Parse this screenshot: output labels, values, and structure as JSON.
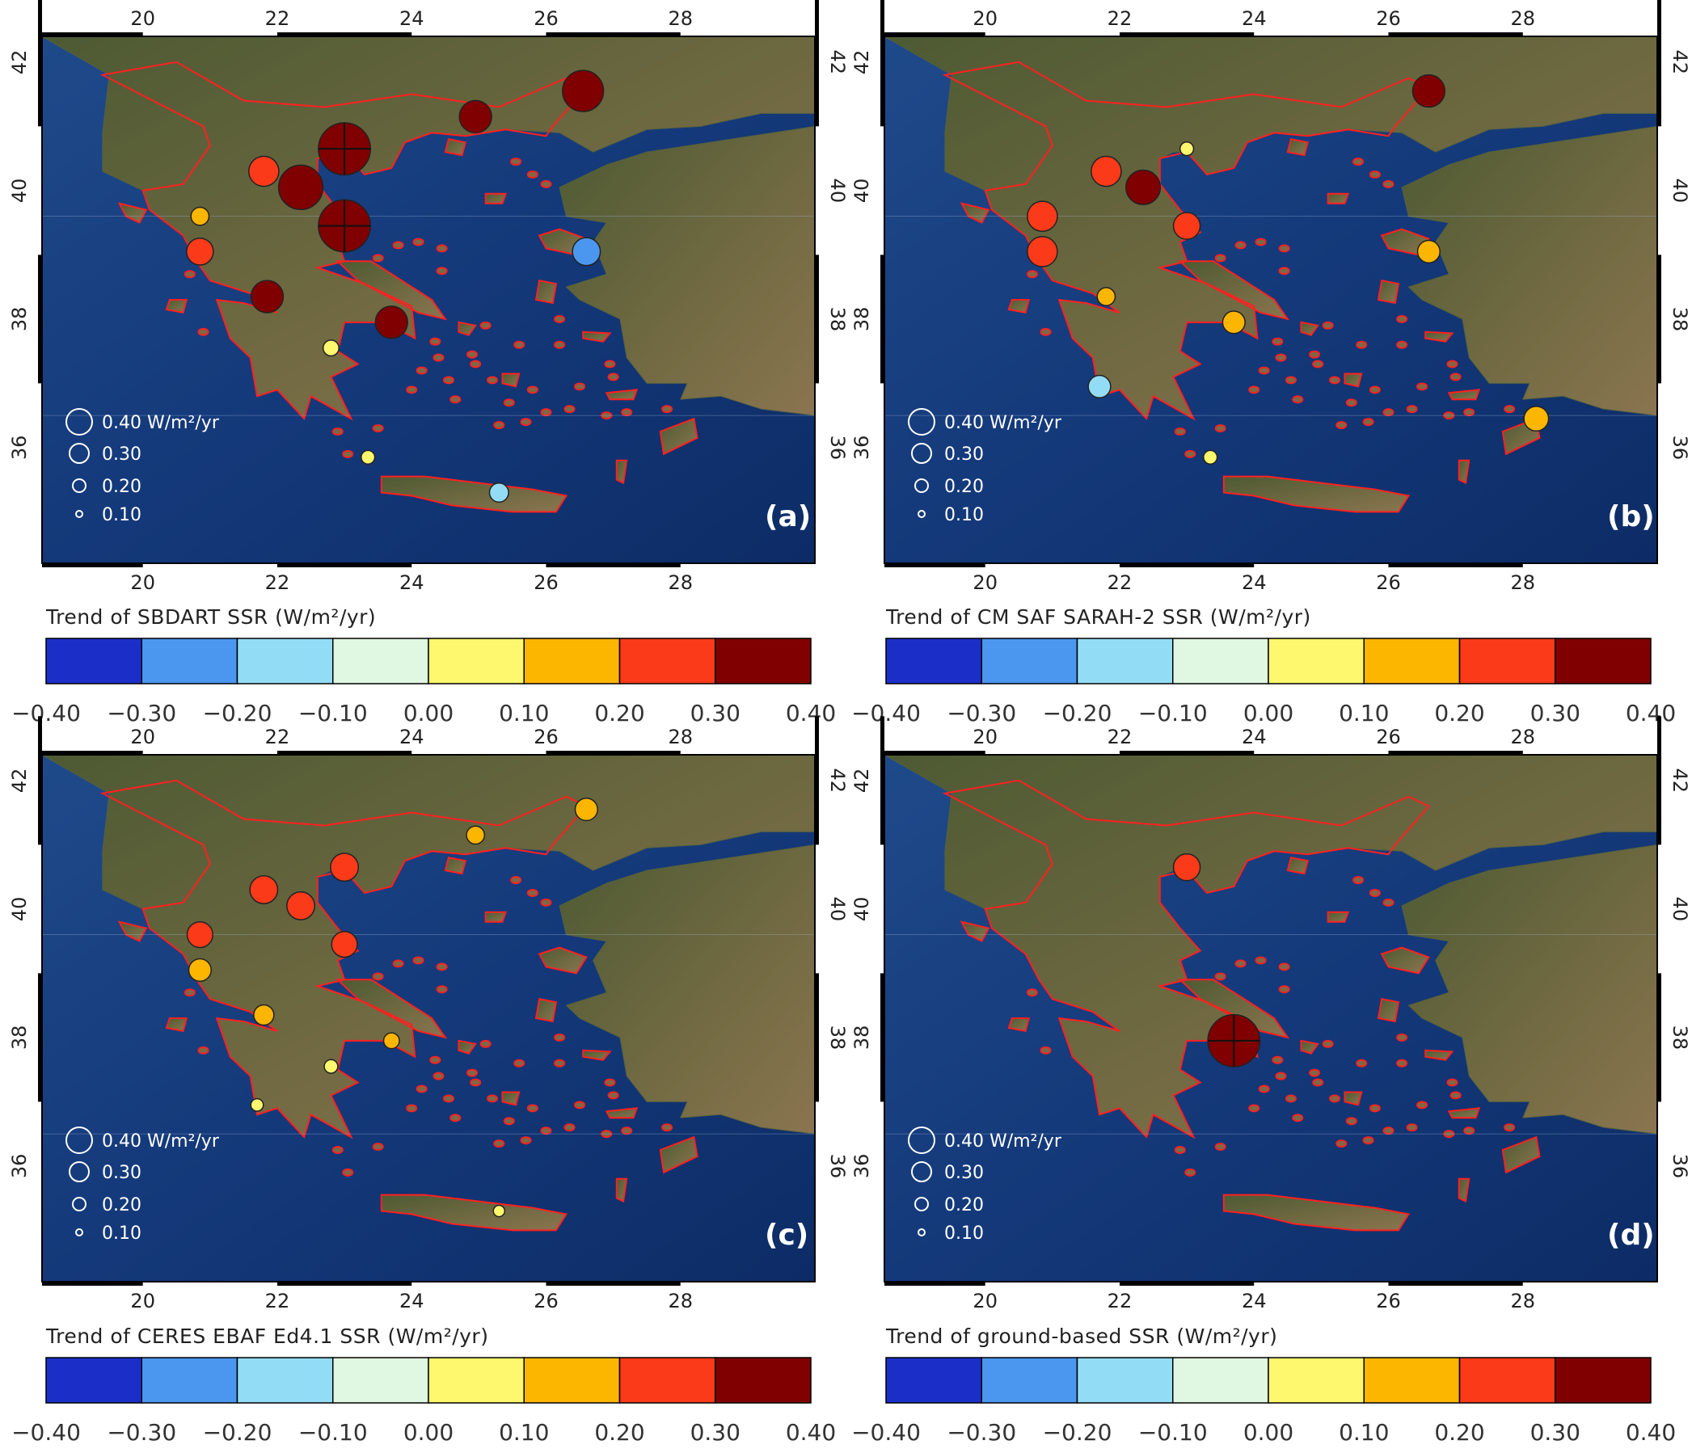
{
  "panels": [
    {
      "id": "a",
      "label": "(a)",
      "colorbar_title": "Trend of SBDART SSR (W/m²/yr)",
      "stations": [
        {
          "lon": 23.0,
          "lat": 40.65,
          "value": 0.4,
          "class": 7,
          "cross": true
        },
        {
          "lon": 23.0,
          "lat": 39.45,
          "value": 0.4,
          "class": 7,
          "cross": true
        },
        {
          "lon": 22.35,
          "lat": 40.05,
          "value": 0.33,
          "class": 7
        },
        {
          "lon": 26.55,
          "lat": 41.55,
          "value": 0.3,
          "class": 7
        },
        {
          "lon": 24.95,
          "lat": 41.15,
          "value": 0.22,
          "class": 7
        },
        {
          "lon": 21.85,
          "lat": 38.35,
          "value": 0.22,
          "class": 7
        },
        {
          "lon": 23.7,
          "lat": 37.95,
          "value": 0.22,
          "class": 7
        },
        {
          "lon": 21.8,
          "lat": 40.3,
          "value": 0.2,
          "class": 6
        },
        {
          "lon": 20.85,
          "lat": 39.05,
          "value": 0.17,
          "class": 6
        },
        {
          "lon": 20.85,
          "lat": 39.6,
          "value": 0.09,
          "class": 5
        },
        {
          "lon": 26.6,
          "lat": 39.05,
          "value": -0.18,
          "class": 1
        },
        {
          "lon": 25.3,
          "lat": 35.3,
          "value": -0.1,
          "class": 2
        },
        {
          "lon": 22.8,
          "lat": 37.55,
          "value": 0.07,
          "class": 4
        },
        {
          "lon": 23.35,
          "lat": 35.85,
          "value": 0.05,
          "class": 4
        }
      ]
    },
    {
      "id": "b",
      "label": "(b)",
      "colorbar_title": "Trend of CM SAF SARAH-2 SSR (W/m²/yr)",
      "stations": [
        {
          "lon": 26.6,
          "lat": 41.55,
          "value": 0.22,
          "class": 7
        },
        {
          "lon": 22.35,
          "lat": 40.05,
          "value": 0.24,
          "class": 7
        },
        {
          "lon": 21.8,
          "lat": 40.3,
          "value": 0.2,
          "class": 6
        },
        {
          "lon": 20.85,
          "lat": 39.6,
          "value": 0.2,
          "class": 6
        },
        {
          "lon": 20.85,
          "lat": 39.05,
          "value": 0.2,
          "class": 6
        },
        {
          "lon": 23.0,
          "lat": 39.45,
          "value": 0.17,
          "class": 6
        },
        {
          "lon": 26.6,
          "lat": 39.05,
          "value": 0.13,
          "class": 5
        },
        {
          "lon": 23.7,
          "lat": 37.95,
          "value": 0.13,
          "class": 5
        },
        {
          "lon": 28.2,
          "lat": 36.45,
          "value": 0.15,
          "class": 5
        },
        {
          "lon": 21.8,
          "lat": 38.35,
          "value": 0.09,
          "class": 5
        },
        {
          "lon": 21.7,
          "lat": 36.95,
          "value": -0.13,
          "class": 2
        },
        {
          "lon": 23.35,
          "lat": 35.85,
          "value": 0.05,
          "class": 4
        },
        {
          "lon": 23.0,
          "lat": 40.65,
          "value": 0.05,
          "class": 4
        }
      ]
    },
    {
      "id": "c",
      "label": "(c)",
      "colorbar_title": "Trend of CERES EBAF Ed4.1 SSR (W/m²/yr)",
      "stations": [
        {
          "lon": 23.0,
          "lat": 40.65,
          "value": 0.18,
          "class": 6
        },
        {
          "lon": 21.8,
          "lat": 40.3,
          "value": 0.18,
          "class": 6
        },
        {
          "lon": 22.35,
          "lat": 40.05,
          "value": 0.18,
          "class": 6
        },
        {
          "lon": 20.85,
          "lat": 39.6,
          "value": 0.16,
          "class": 6
        },
        {
          "lon": 23.0,
          "lat": 39.45,
          "value": 0.16,
          "class": 6
        },
        {
          "lon": 20.85,
          "lat": 39.05,
          "value": 0.13,
          "class": 5
        },
        {
          "lon": 26.6,
          "lat": 41.55,
          "value": 0.13,
          "class": 5
        },
        {
          "lon": 21.8,
          "lat": 38.35,
          "value": 0.11,
          "class": 5
        },
        {
          "lon": 24.95,
          "lat": 41.15,
          "value": 0.09,
          "class": 5
        },
        {
          "lon": 23.7,
          "lat": 37.95,
          "value": 0.07,
          "class": 5
        },
        {
          "lon": 22.8,
          "lat": 37.55,
          "value": 0.05,
          "class": 4
        },
        {
          "lon": 21.7,
          "lat": 36.95,
          "value": 0.04,
          "class": 4
        },
        {
          "lon": 25.3,
          "lat": 35.3,
          "value": 0.03,
          "class": 4
        }
      ]
    },
    {
      "id": "d",
      "label": "(d)",
      "colorbar_title": "Trend of ground-based SSR (W/m²/yr)",
      "stations": [
        {
          "lon": 23.7,
          "lat": 37.95,
          "value": 0.4,
          "class": 7,
          "cross": true
        },
        {
          "lon": 23.0,
          "lat": 40.65,
          "value": 0.17,
          "class": 6
        }
      ]
    }
  ],
  "axes": {
    "lon_ticks": [
      20,
      22,
      24,
      26,
      28
    ],
    "lat_ticks": [
      36,
      38,
      40,
      42
    ],
    "lon_range": [
      18.5,
      30.0
    ],
    "lat_range": [
      34.2,
      42.4
    ]
  },
  "size_legend": {
    "entries": [
      "0.40 W/m²/yr",
      "0.30",
      "0.20",
      "0.10"
    ],
    "values": [
      0.4,
      0.3,
      0.2,
      0.1
    ]
  },
  "colorbar": {
    "ticks": [
      "-0.40",
      "-0.30",
      "-0.20",
      "-0.10",
      "0.00",
      "0.10",
      "0.20",
      "0.30",
      "0.40"
    ],
    "colors": [
      "#1b2fc8",
      "#4b97ef",
      "#93dcf5",
      "#e0f7e1",
      "#fdf86d",
      "#fdb600",
      "#fb3a19",
      "#800001"
    ]
  },
  "map_colors": {
    "sea": "#14397a",
    "land": "#6b6b3e",
    "greece_border": "#ff2020"
  }
}
